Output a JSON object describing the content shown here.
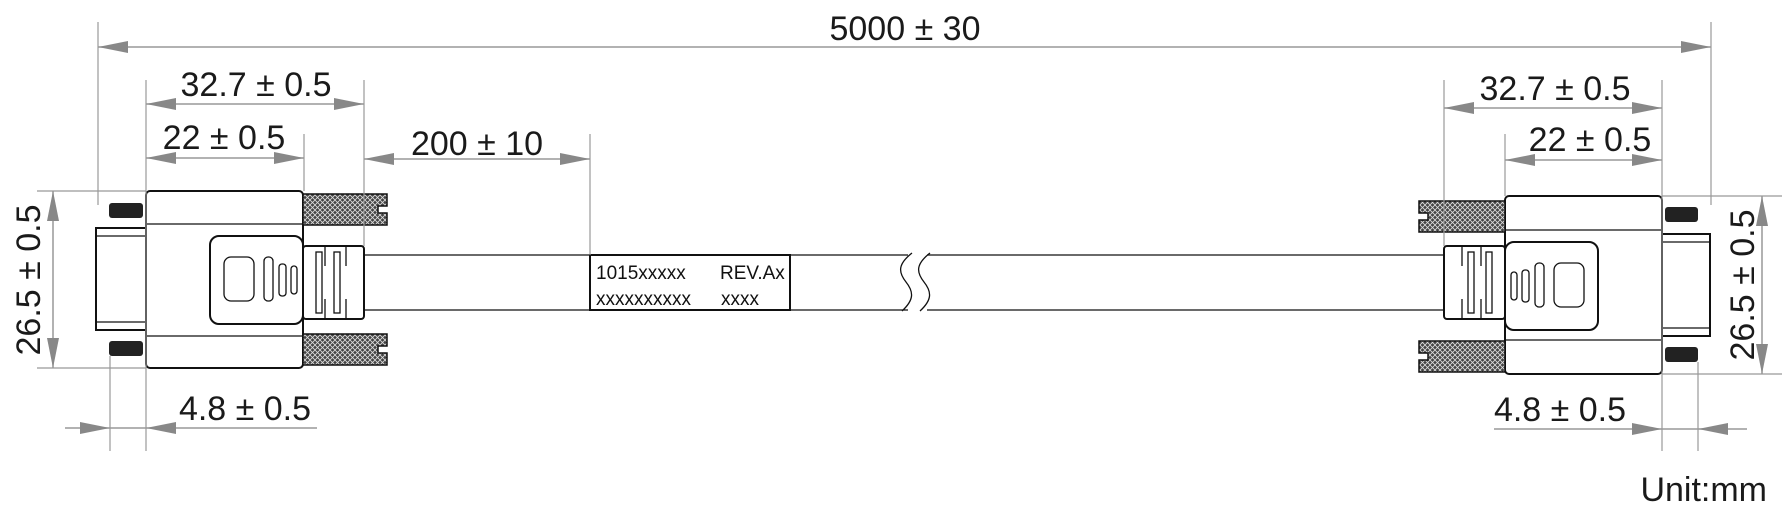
{
  "dimensions": {
    "total_length": "5000 ± 30",
    "left_overall_connector": "32.7 ± 0.5",
    "left_body": "22 ± 0.5",
    "label_offset": "200 ± 10",
    "left_height": "26.5 ± 0.5",
    "left_screw": "4.8 ± 0.5",
    "right_overall_connector": "32.7 ± 0.5",
    "right_body": "22 ± 0.5",
    "right_height": "26.5 ± 0.5",
    "right_screw": "4.8 ± 0.5"
  },
  "cable_label": {
    "part_number": "1015xxxxx",
    "revision": "REV.Ax",
    "serial": "xxxxxxxxxx",
    "code": "xxxx"
  },
  "unit": "Unit:mm",
  "colors": {
    "line": "#111111",
    "dimension": "#999999",
    "knurl": "#333333"
  }
}
